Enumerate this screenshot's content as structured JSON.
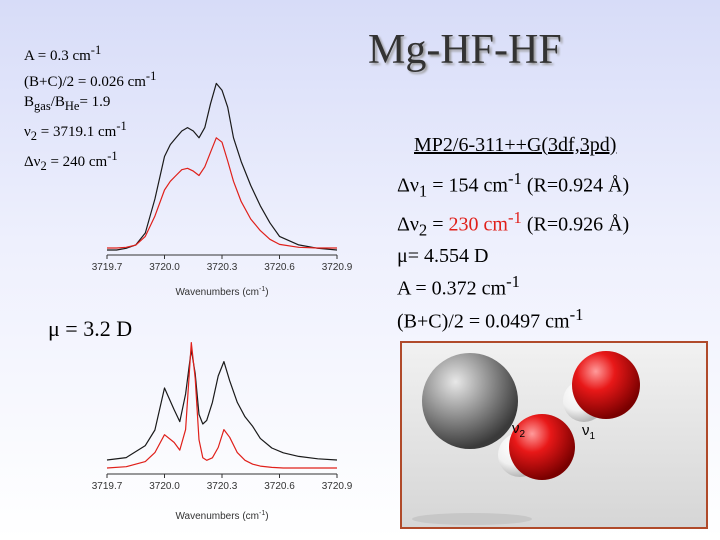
{
  "title": "Mg-HF-HF",
  "experimental_params": [
    {
      "base": "A = 0.3 cm",
      "sup": "-1"
    },
    {
      "base": "(B+C)/2 = 0.026 cm",
      "sup": "-1"
    },
    {
      "b_pre": "B",
      "b_sub": "gas",
      "mid": "/B",
      "he_sub": "He",
      "rest": "= 1.9"
    },
    {
      "nu": "ν",
      "sub": "2",
      "rest": " = 3719.1 cm",
      "sup": "-1"
    },
    {
      "pre": "Δν",
      "sub": "2",
      "rest": " = 240 cm",
      "sup": "-1"
    }
  ],
  "method": "MP2/6-311++G(3df,3pd)",
  "calc_params": {
    "dnu1": {
      "pre": "Δν",
      "sub": "1",
      "mid": " = 154 cm",
      "sup": "-1",
      "post": " (R=0.924 Å)"
    },
    "dnu2": {
      "pre": "Δν",
      "sub": "2",
      "eq": " = ",
      "red": "230 cm",
      "sup": "-1",
      "post": " (R=0.926 Å)"
    },
    "mu": "μ= 4.554 D",
    "A": {
      "base": "A = 0.372 cm",
      "sup": "-1"
    },
    "BC": {
      "base": "(B+C)/2 = 0.0497 cm",
      "sup": "-1"
    }
  },
  "mu_exp": "μ = 3.2 D",
  "molecule_labels": {
    "v2": "ν",
    "v2_sub": "2",
    "v1": "ν",
    "v1_sub": "1"
  },
  "chart_data": [
    {
      "type": "line",
      "xlabel": "Wavenumbers (cm",
      "xlabel_sup": "-1",
      "xlabel_end": ")",
      "tick_labels": [
        "3719.7",
        "3720.0",
        "3720.3",
        "3720.6",
        "3720.9"
      ],
      "xlim": [
        3719.7,
        3720.9
      ],
      "series": [
        {
          "color": "#1a1a1a",
          "x": [
            3719.7,
            3719.75,
            3719.8,
            3719.85,
            3719.9,
            3719.95,
            3720.0,
            3720.03,
            3720.06,
            3720.09,
            3720.12,
            3720.15,
            3720.18,
            3720.21,
            3720.24,
            3720.27,
            3720.3,
            3720.33,
            3720.36,
            3720.4,
            3720.45,
            3720.5,
            3720.55,
            3720.6,
            3720.7,
            3720.8,
            3720.9
          ],
          "values": [
            0.0,
            0.0,
            0.01,
            0.03,
            0.1,
            0.3,
            0.55,
            0.62,
            0.66,
            0.7,
            0.72,
            0.7,
            0.66,
            0.72,
            0.86,
            0.98,
            0.94,
            0.84,
            0.66,
            0.52,
            0.38,
            0.26,
            0.16,
            0.08,
            0.03,
            0.01,
            0.0
          ]
        },
        {
          "color": "#e0201a",
          "x": [
            3719.7,
            3719.75,
            3719.8,
            3719.85,
            3719.9,
            3719.95,
            3720.0,
            3720.03,
            3720.06,
            3720.09,
            3720.12,
            3720.15,
            3720.18,
            3720.21,
            3720.24,
            3720.27,
            3720.3,
            3720.33,
            3720.36,
            3720.4,
            3720.45,
            3720.5,
            3720.55,
            3720.6,
            3720.7,
            3720.8,
            3720.9
          ],
          "values": [
            0.0,
            0.0,
            0.005,
            0.02,
            0.08,
            0.22,
            0.4,
            0.46,
            0.5,
            0.54,
            0.55,
            0.53,
            0.5,
            0.56,
            0.66,
            0.76,
            0.73,
            0.6,
            0.46,
            0.32,
            0.2,
            0.12,
            0.06,
            0.025,
            0.005,
            0.0,
            0.0
          ]
        }
      ]
    },
    {
      "type": "line",
      "xlabel": "Wavenumbers (cm",
      "xlabel_sup": "-1",
      "xlabel_end": ")",
      "tick_labels": [
        "3719.7",
        "3720.0",
        "3720.3",
        "3720.6",
        "3720.9"
      ],
      "xlim": [
        3719.7,
        3720.9
      ],
      "series": [
        {
          "color": "#1a1a1a",
          "x": [
            3719.7,
            3719.8,
            3719.9,
            3719.95,
            3720.0,
            3720.05,
            3720.08,
            3720.11,
            3720.14,
            3720.16,
            3720.18,
            3720.2,
            3720.22,
            3720.25,
            3720.28,
            3720.31,
            3720.34,
            3720.38,
            3720.42,
            3720.46,
            3720.5,
            3720.56,
            3720.62,
            3720.7,
            3720.8,
            3720.9
          ],
          "values": [
            0.0,
            0.02,
            0.12,
            0.25,
            0.6,
            0.42,
            0.32,
            0.55,
            0.92,
            0.72,
            0.38,
            0.3,
            0.33,
            0.48,
            0.7,
            0.82,
            0.66,
            0.48,
            0.36,
            0.28,
            0.18,
            0.1,
            0.06,
            0.03,
            0.01,
            0.0
          ]
        },
        {
          "color": "#e0201a",
          "x": [
            3719.7,
            3719.8,
            3719.9,
            3719.95,
            3720.0,
            3720.05,
            3720.08,
            3720.11,
            3720.14,
            3720.16,
            3720.18,
            3720.2,
            3720.22,
            3720.25,
            3720.28,
            3720.31,
            3720.34,
            3720.38,
            3720.42,
            3720.46,
            3720.5,
            3720.56,
            3720.62,
            3720.7,
            3720.8,
            3720.9
          ],
          "values": [
            0.0,
            0.01,
            0.05,
            0.12,
            0.26,
            0.2,
            0.14,
            0.3,
            0.98,
            0.7,
            0.22,
            0.08,
            0.06,
            0.08,
            0.16,
            0.3,
            0.24,
            0.12,
            0.06,
            0.03,
            0.015,
            0.005,
            0.0,
            0.0,
            0.0,
            0.0
          ]
        }
      ]
    }
  ]
}
